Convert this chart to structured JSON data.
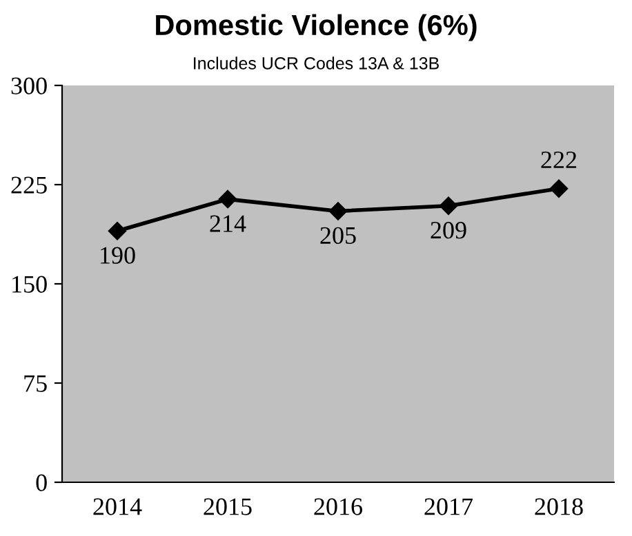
{
  "chart_data": {
    "type": "line",
    "title": "Domestic Violence (6%)",
    "subtitle": "Includes UCR Codes 13A & 13B",
    "categories": [
      "2014",
      "2015",
      "2016",
      "2017",
      "2018"
    ],
    "series": [
      {
        "color": "#000000",
        "values": [
          190,
          214,
          205,
          209,
          222
        ]
      }
    ],
    "ylim": [
      0,
      300
    ],
    "yticks": [
      0,
      75,
      150,
      225,
      300
    ],
    "grid": false,
    "marker": "diamond",
    "line_style": "solid",
    "data_labels": true,
    "legend": false
  }
}
